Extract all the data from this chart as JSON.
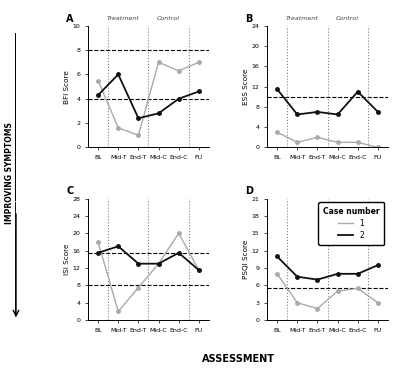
{
  "x_labels": [
    "BL",
    "Mid-T",
    "End-T",
    "Mid-C",
    "End-C",
    "FU"
  ],
  "panel_A": {
    "title": "A",
    "ylabel": "BFI Score",
    "case1": [
      5.5,
      1.6,
      1.0,
      7.0,
      6.3,
      7.0
    ],
    "case2": [
      4.3,
      6.0,
      2.4,
      2.8,
      4.0,
      4.6
    ],
    "hlines": [
      4.0,
      8.0
    ],
    "ylim": [
      0,
      10
    ],
    "yticks": [
      0,
      2,
      4,
      6,
      8,
      10
    ]
  },
  "panel_B": {
    "title": "B",
    "ylabel": "ESS Score",
    "case1": [
      3.0,
      1.0,
      2.0,
      1.0,
      1.0,
      0.0
    ],
    "case2": [
      11.5,
      6.5,
      7.0,
      6.5,
      11.0,
      7.0
    ],
    "hlines": [
      10.0
    ],
    "ylim": [
      0,
      24
    ],
    "yticks": [
      0,
      4,
      8,
      12,
      16,
      20,
      24
    ]
  },
  "panel_C": {
    "title": "C",
    "ylabel": "ISI Score",
    "case1": [
      18.0,
      2.0,
      7.5,
      13.0,
      20.0,
      11.5
    ],
    "case2": [
      15.5,
      17.0,
      13.0,
      13.0,
      15.5,
      11.5
    ],
    "hlines": [
      8.0,
      15.5
    ],
    "ylim": [
      0,
      28
    ],
    "yticks": [
      0,
      4,
      8,
      12,
      16,
      20,
      24,
      28
    ]
  },
  "panel_D": {
    "title": "D",
    "ylabel": "PSQI Score",
    "case1": [
      8.0,
      3.0,
      2.0,
      5.0,
      5.5,
      3.0
    ],
    "case2": [
      11.0,
      7.5,
      7.0,
      8.0,
      8.0,
      9.5
    ],
    "hlines": [
      5.5
    ],
    "ylim": [
      0,
      21
    ],
    "yticks": [
      0,
      3,
      6,
      9,
      12,
      15,
      18,
      21
    ]
  },
  "color_case1": "#aaaaaa",
  "color_case2": "#111111",
  "treatment_label": "Treatment",
  "control_label": "Control",
  "x_axis_label": "ASSESSMENT",
  "improving_label": "IMPROVING SYMPTOMS",
  "legend_title": "Case number",
  "legend_entries": [
    "1",
    "2"
  ]
}
